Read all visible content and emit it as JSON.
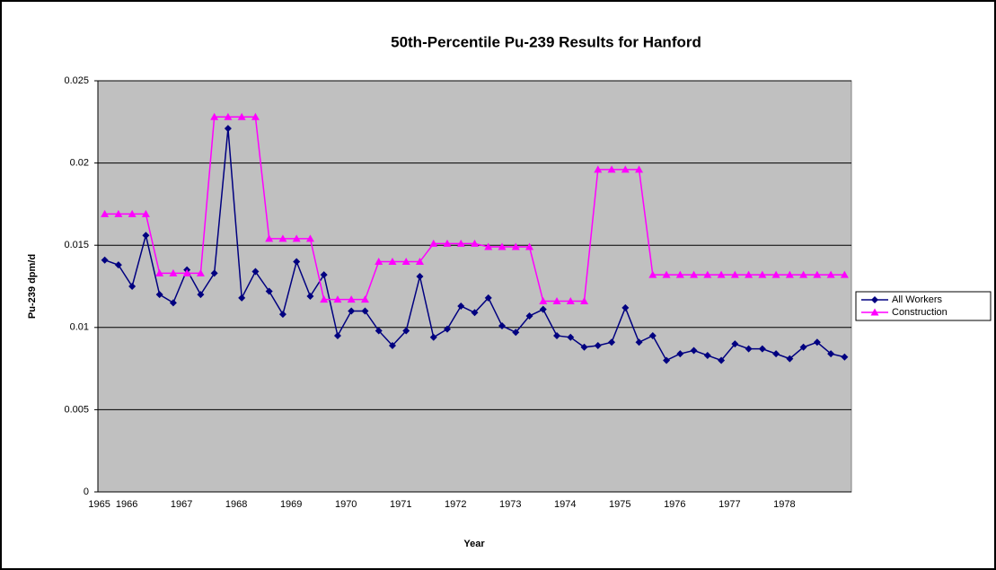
{
  "chart_data": {
    "type": "line",
    "title": "50th-Percentile Pu-239 Results for Hanford",
    "x_label": "Year",
    "y_label": "Pu-239 dpm/d",
    "categories": [
      "1965",
      null,
      "1966",
      null,
      null,
      null,
      "1967",
      null,
      null,
      null,
      "1968",
      null,
      null,
      null,
      "1969",
      null,
      null,
      null,
      "1970",
      null,
      null,
      null,
      "1971",
      null,
      null,
      null,
      "1972",
      null,
      null,
      null,
      "1973",
      null,
      null,
      null,
      "1974",
      null,
      null,
      null,
      "1975",
      null,
      null,
      null,
      "1976",
      null,
      null,
      null,
      "1977",
      null,
      null,
      null,
      "1978",
      null,
      null,
      null,
      null
    ],
    "series": [
      {
        "name": "All Workers",
        "color": "#000080",
        "marker": "diamond",
        "values": [
          0.0141,
          0.0138,
          0.0125,
          0.0156,
          0.012,
          0.0115,
          0.0135,
          0.012,
          0.0133,
          0.0221,
          0.0118,
          0.0134,
          0.0122,
          0.0108,
          0.014,
          0.0119,
          0.0132,
          0.0095,
          0.011,
          0.011,
          0.0098,
          0.0089,
          0.0098,
          0.0131,
          0.0094,
          0.0099,
          0.0113,
          0.0109,
          0.0118,
          0.0101,
          0.0097,
          0.0107,
          0.0111,
          0.0095,
          0.0094,
          0.0088,
          0.0089,
          0.0091,
          0.0112,
          0.0091,
          0.0095,
          0.008,
          0.0084,
          0.0086,
          0.0083,
          0.008,
          0.009,
          0.0087,
          0.0087,
          0.0084,
          0.0081,
          0.0088,
          0.0091,
          0.0084,
          0.0082
        ]
      },
      {
        "name": "Construction",
        "color": "#ff00ff",
        "marker": "triangle",
        "values": [
          0.0169,
          0.0169,
          0.0169,
          0.0169,
          0.0133,
          0.0133,
          0.0133,
          0.0133,
          0.0228,
          0.0228,
          0.0228,
          0.0228,
          0.0154,
          0.0154,
          0.0154,
          0.0154,
          0.0117,
          0.0117,
          0.0117,
          0.0117,
          0.014,
          0.014,
          0.014,
          0.014,
          0.0151,
          0.0151,
          0.0151,
          0.0151,
          0.0149,
          0.0149,
          0.0149,
          0.0149,
          0.0116,
          0.0116,
          0.0116,
          0.0116,
          0.0196,
          0.0196,
          0.0196,
          0.0196,
          0.0132,
          0.0132,
          0.0132,
          0.0132,
          0.0132,
          0.0132,
          0.0132,
          0.0132,
          0.0132,
          0.0132,
          0.0132,
          0.0132,
          0.0132,
          0.0132,
          0.0132
        ]
      }
    ],
    "ylim": [
      0,
      0.025
    ],
    "yticks": [
      0,
      0.005,
      0.01,
      0.015,
      0.02,
      0.025
    ],
    "grid": true,
    "plot_background": "#c0c0c0",
    "legend": "right"
  }
}
